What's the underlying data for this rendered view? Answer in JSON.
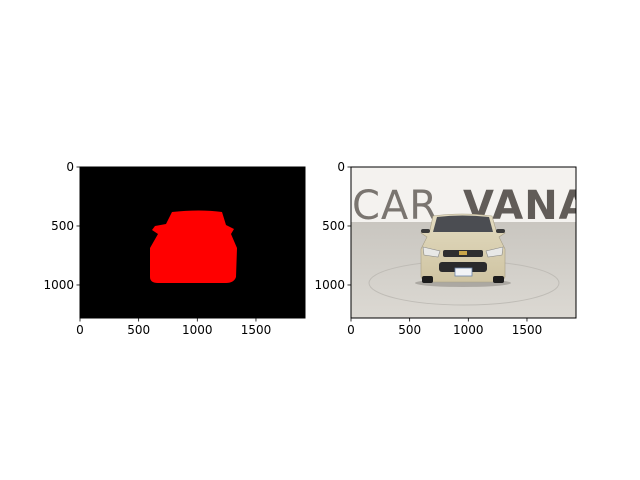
{
  "figure": {
    "background": "#ffffff"
  },
  "chart_data": [
    {
      "type": "image",
      "content": "segmentation mask",
      "mask_color": "#ff0000",
      "background_color": "#000000",
      "xlim": [
        0,
        1918
      ],
      "ylim": [
        1280,
        0
      ],
      "xticks": [
        0,
        500,
        1000,
        1500
      ],
      "yticks": [
        0,
        500,
        1000
      ],
      "xtick_labels": [
        "0",
        "500",
        "1000",
        "1500"
      ],
      "ytick_labels": [
        "0",
        "500",
        "1000"
      ]
    },
    {
      "type": "image",
      "content": "photo of beige sedan, front view, in studio",
      "colors": {
        "wall": "#f3f1ee",
        "floor": "#d3d0ca",
        "car_body": "#d9cfb0",
        "logo_text": "#6f6a66"
      },
      "background_text": {
        "part1": "CAR",
        "part2": "VANA"
      },
      "xlim": [
        0,
        1918
      ],
      "ylim": [
        1280,
        0
      ],
      "xticks": [
        0,
        500,
        1000,
        1500
      ],
      "yticks": [
        0,
        500,
        1000
      ],
      "xtick_labels": [
        "0",
        "500",
        "1000",
        "1500"
      ],
      "ytick_labels": [
        "0",
        "500",
        "1000"
      ]
    }
  ]
}
